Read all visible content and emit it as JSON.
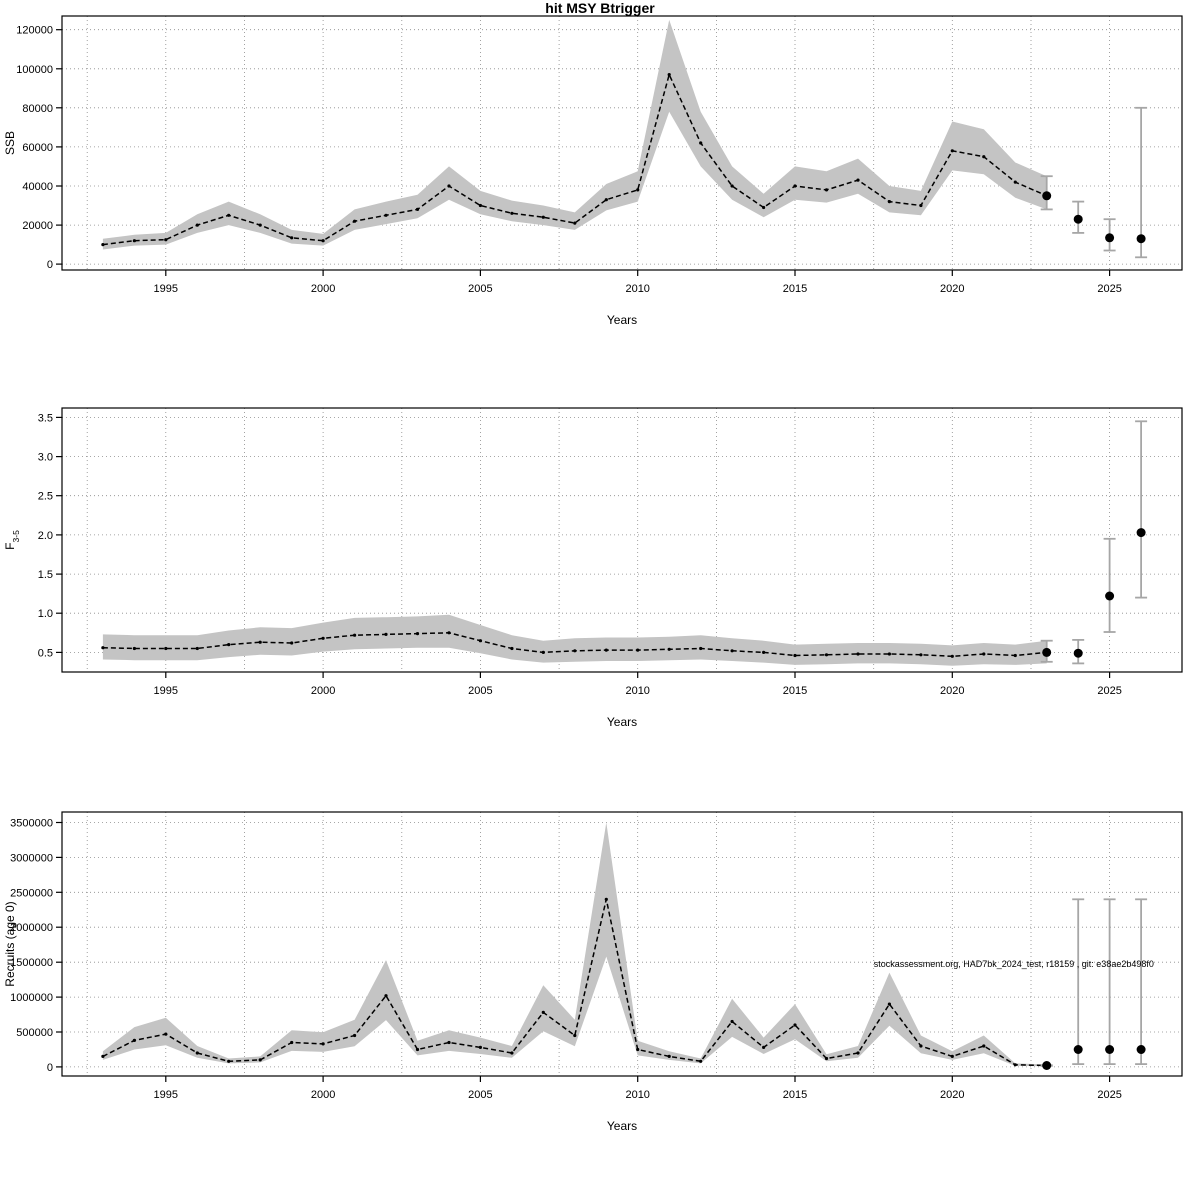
{
  "figure": {
    "title": "hit MSY Btrigger"
  },
  "watermark": "stockassessment.org, HAD7bk_2024_test, r18159 , git: e38ae2b498f0",
  "colors": {
    "band": "#c4c4c4",
    "line": "#000000",
    "point": "#000000",
    "forecast_bar": "#a6a6a6",
    "grid": "#8a8a8a"
  },
  "chart_data": [
    {
      "name": "ssb",
      "type": "line",
      "title": "hit MSY Btrigger",
      "xlabel": "Years",
      "ylabel": "SSB",
      "xlim": [
        1991.7,
        2027.3
      ],
      "ylim": [
        -3000,
        127000
      ],
      "xticks": [
        1995,
        2000,
        2005,
        2010,
        2015,
        2020,
        2025
      ],
      "yticks": [
        0,
        20000,
        40000,
        60000,
        80000,
        100000,
        120000
      ],
      "yticklabels": [
        "0",
        "20000",
        "40000",
        "60000",
        "80000",
        "100000",
        "120000"
      ],
      "x": [
        1993,
        1994,
        1995,
        1996,
        1997,
        1998,
        1999,
        2000,
        2001,
        2002,
        2003,
        2004,
        2005,
        2006,
        2007,
        2008,
        2009,
        2010,
        2011,
        2012,
        2013,
        2014,
        2015,
        2016,
        2017,
        2018,
        2019,
        2020,
        2021,
        2022,
        2023
      ],
      "values": [
        10000,
        12000,
        12500,
        20000,
        25000,
        20000,
        13500,
        12000,
        22000,
        25000,
        28000,
        40000,
        30000,
        26000,
        24000,
        21000,
        33000,
        38000,
        97000,
        62000,
        40000,
        29000,
        40000,
        38000,
        43000,
        32000,
        30000,
        58000,
        55000,
        42000,
        35000
      ],
      "lower": [
        7500,
        9500,
        10000,
        16000,
        20000,
        16000,
        10500,
        9500,
        17500,
        20500,
        23500,
        33000,
        25500,
        22000,
        20000,
        17500,
        27500,
        32000,
        78000,
        50000,
        33000,
        24000,
        33000,
        31500,
        36000,
        26500,
        25000,
        48000,
        46000,
        34000,
        28000
      ],
      "upper": [
        13000,
        15000,
        16000,
        25500,
        32000,
        25500,
        17500,
        15500,
        28000,
        32000,
        35500,
        50000,
        37500,
        32500,
        30000,
        26500,
        41000,
        47500,
        125000,
        78000,
        50000,
        36000,
        50000,
        47500,
        54000,
        40000,
        37500,
        73000,
        69000,
        52000,
        45000
      ],
      "forecast": {
        "x": [
          2023,
          2024,
          2025,
          2026
        ],
        "values": [
          35000,
          23000,
          13500,
          13000
        ],
        "lower": [
          28000,
          16000,
          7000,
          3500
        ],
        "upper": [
          45000,
          32000,
          23000,
          80000
        ]
      }
    },
    {
      "name": "f",
      "type": "line",
      "title": "",
      "xlabel": "Years",
      "ylabel": "F",
      "ylabel_sub": "3-5",
      "xlim": [
        1991.7,
        2027.3
      ],
      "ylim": [
        0.25,
        3.62
      ],
      "xticks": [
        1995,
        2000,
        2005,
        2010,
        2015,
        2020,
        2025
      ],
      "yticks": [
        0.5,
        1.0,
        1.5,
        2.0,
        2.5,
        3.0,
        3.5
      ],
      "yticklabels": [
        "0.5",
        "1.0",
        "1.5",
        "2.0",
        "2.5",
        "3.0",
        "3.5"
      ],
      "x": [
        1993,
        1994,
        1995,
        1996,
        1997,
        1998,
        1999,
        2000,
        2001,
        2002,
        2003,
        2004,
        2005,
        2006,
        2007,
        2008,
        2009,
        2010,
        2011,
        2012,
        2013,
        2014,
        2015,
        2016,
        2017,
        2018,
        2019,
        2020,
        2021,
        2022,
        2023
      ],
      "values": [
        0.56,
        0.55,
        0.55,
        0.55,
        0.6,
        0.63,
        0.62,
        0.68,
        0.72,
        0.73,
        0.74,
        0.75,
        0.65,
        0.55,
        0.5,
        0.52,
        0.53,
        0.53,
        0.54,
        0.55,
        0.52,
        0.5,
        0.46,
        0.47,
        0.48,
        0.48,
        0.47,
        0.45,
        0.48,
        0.46,
        0.5
      ],
      "lower": [
        0.41,
        0.4,
        0.4,
        0.4,
        0.44,
        0.47,
        0.46,
        0.51,
        0.54,
        0.55,
        0.56,
        0.56,
        0.49,
        0.41,
        0.37,
        0.38,
        0.39,
        0.39,
        0.4,
        0.41,
        0.39,
        0.37,
        0.34,
        0.35,
        0.36,
        0.36,
        0.35,
        0.33,
        0.35,
        0.34,
        0.36
      ],
      "upper": [
        0.73,
        0.72,
        0.72,
        0.72,
        0.78,
        0.82,
        0.81,
        0.88,
        0.94,
        0.95,
        0.96,
        0.98,
        0.85,
        0.72,
        0.65,
        0.68,
        0.69,
        0.69,
        0.7,
        0.72,
        0.68,
        0.65,
        0.6,
        0.61,
        0.62,
        0.62,
        0.61,
        0.59,
        0.62,
        0.6,
        0.65
      ],
      "forecast": {
        "x": [
          2023,
          2024,
          2025,
          2026
        ],
        "values": [
          0.5,
          0.49,
          1.22,
          2.03
        ],
        "lower": [
          0.38,
          0.36,
          0.76,
          1.2
        ],
        "upper": [
          0.65,
          0.66,
          1.95,
          3.45
        ]
      }
    },
    {
      "name": "recruits",
      "type": "line",
      "title": "",
      "xlabel": "Years",
      "ylabel": "Recruits (age 0)",
      "xlim": [
        1991.7,
        2027.3
      ],
      "ylim": [
        -130000,
        3650000
      ],
      "xticks": [
        1995,
        2000,
        2005,
        2010,
        2015,
        2020,
        2025
      ],
      "yticks": [
        0,
        500000,
        1000000,
        1500000,
        2000000,
        2500000,
        3000000,
        3500000
      ],
      "yticklabels": [
        "0",
        "500000",
        "1000000",
        "1500000",
        "2000000",
        "2500000",
        "3000000",
        "3500000"
      ],
      "x": [
        1993,
        1994,
        1995,
        1996,
        1997,
        1998,
        1999,
        2000,
        2001,
        2002,
        2003,
        2004,
        2005,
        2006,
        2007,
        2008,
        2009,
        2010,
        2011,
        2012,
        2013,
        2014,
        2015,
        2016,
        2017,
        2018,
        2019,
        2020,
        2021,
        2022,
        2023
      ],
      "values": [
        150000,
        380000,
        470000,
        200000,
        80000,
        100000,
        350000,
        330000,
        450000,
        1020000,
        250000,
        350000,
        280000,
        200000,
        780000,
        450000,
        2400000,
        250000,
        150000,
        80000,
        650000,
        280000,
        600000,
        120000,
        200000,
        900000,
        300000,
        150000,
        300000,
        30000,
        20000
      ],
      "lower": [
        100000,
        250000,
        310000,
        130000,
        50000,
        65000,
        230000,
        215000,
        295000,
        670000,
        165000,
        230000,
        185000,
        130000,
        510000,
        295000,
        1580000,
        165000,
        100000,
        50000,
        430000,
        185000,
        395000,
        80000,
        130000,
        590000,
        195000,
        100000,
        195000,
        15000,
        10000
      ],
      "upper": [
        225000,
        570000,
        705000,
        300000,
        120000,
        150000,
        525000,
        495000,
        675000,
        1530000,
        375000,
        525000,
        420000,
        300000,
        1170000,
        675000,
        3500000,
        375000,
        225000,
        120000,
        975000,
        420000,
        900000,
        180000,
        300000,
        1350000,
        450000,
        225000,
        450000,
        50000,
        35000
      ],
      "forecast": {
        "x": [
          2023,
          2024,
          2025,
          2026
        ],
        "values": [
          20000,
          250000,
          250000,
          250000
        ],
        "lower": [
          15000,
          40000,
          40000,
          40000
        ],
        "upper": [
          25000,
          2400000,
          2400000,
          2400000
        ]
      },
      "annotation": {
        "text": "stockassessment.org, HAD7bk_2024_test, r18159 , git: e38ae2b498f0",
        "x": 2017.5,
        "y": 1430000
      }
    }
  ]
}
